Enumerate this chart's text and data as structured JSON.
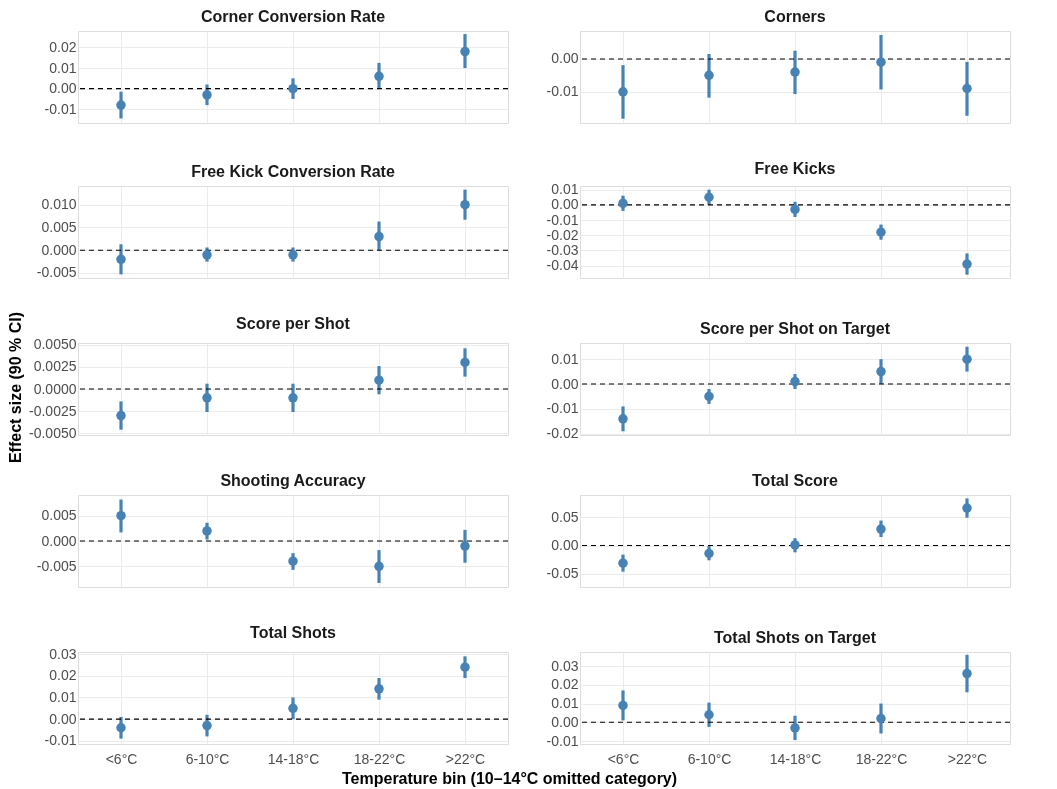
{
  "chart_data": [
    {
      "type": "scatter",
      "title": "Corner Conversion Rate",
      "categories": [
        null,
        null,
        null,
        null,
        null
      ],
      "series": [
        {
          "color": "#4682b4",
          "values": [
            -0.008,
            -0.003,
            0.0,
            0.006,
            0.018
          ],
          "errors": [
            [
              -0.0145,
              -0.0015
            ],
            [
              -0.008,
              0.002
            ],
            [
              -0.005,
              0.005
            ],
            [
              0.0,
              0.0125
            ],
            [
              0.01,
              0.0265
            ]
          ]
        }
      ],
      "ylim": [
        -0.0167,
        0.028
      ],
      "yticks": [
        {
          "value": -0.01,
          "label": "-0.01"
        },
        {
          "value": 0,
          "label": "0.00"
        },
        {
          "value": 0.01,
          "label": "0.01"
        },
        {
          "value": 0.02,
          "label": "0.02"
        }
      ],
      "ref_lines": [
        {
          "axis": "y",
          "value": 0,
          "color": "#000000",
          "line_style": "dashed"
        }
      ],
      "grid": true,
      "marker": "circle"
    },
    {
      "type": "scatter",
      "title": "Corners",
      "categories": [
        null,
        null,
        null,
        null,
        null
      ],
      "series": [
        {
          "color": "#4682b4",
          "values": [
            -0.01,
            -0.005,
            -0.004,
            -0.001,
            -0.009
          ],
          "errors": [
            [
              -0.0182,
              -0.0019
            ],
            [
              -0.0118,
              0.0015
            ],
            [
              -0.0107,
              0.0025
            ],
            [
              -0.0093,
              0.0073
            ],
            [
              -0.0173,
              -0.0009
            ]
          ]
        }
      ],
      "ylim": [
        -0.0195,
        0.0085
      ],
      "yticks": [
        {
          "value": -0.01,
          "label": "-0.01"
        },
        {
          "value": 0,
          "label": "0.00"
        }
      ],
      "ref_lines": [
        {
          "axis": "y",
          "value": 0,
          "color": "#000000",
          "line_style": "dashed"
        }
      ],
      "grid": true,
      "marker": "circle"
    },
    {
      "type": "scatter",
      "title": "Free Kick Conversion Rate",
      "categories": [
        null,
        null,
        null,
        null,
        null
      ],
      "series": [
        {
          "color": "#4682b4",
          "values": [
            -0.002,
            -0.001,
            -0.001,
            0.003,
            0.01
          ],
          "errors": [
            [
              -0.0053,
              0.0013
            ],
            [
              -0.0025,
              0.0006
            ],
            [
              -0.0025,
              0.0006
            ],
            [
              0.0,
              0.0063
            ],
            [
              0.0067,
              0.0133
            ]
          ]
        }
      ],
      "ylim": [
        -0.0061,
        0.0141
      ],
      "yticks": [
        {
          "value": -0.005,
          "label": "-0.005"
        },
        {
          "value": 0,
          "label": "0.000"
        },
        {
          "value": 0.005,
          "label": "0.005"
        },
        {
          "value": 0.01,
          "label": "0.010"
        }
      ],
      "ref_lines": [
        {
          "axis": "y",
          "value": 0,
          "color": "#000000",
          "line_style": "dashed"
        }
      ],
      "grid": true,
      "marker": "circle"
    },
    {
      "type": "scatter",
      "title": "Free Kicks",
      "categories": [
        null,
        null,
        null,
        null,
        null
      ],
      "series": [
        {
          "color": "#4682b4",
          "values": [
            0.001,
            0.005,
            -0.003,
            -0.018,
            -0.039
          ],
          "errors": [
            [
              -0.004,
              0.006
            ],
            [
              0.0,
              0.01
            ],
            [
              -0.008,
              0.002
            ],
            [
              -0.023,
              -0.013
            ],
            [
              -0.046,
              -0.032
            ]
          ]
        }
      ],
      "ylim": [
        -0.0482,
        0.0124
      ],
      "yticks": [
        {
          "value": -0.04,
          "label": "-0.04"
        },
        {
          "value": -0.03,
          "label": "-0.03"
        },
        {
          "value": -0.02,
          "label": "-0.02"
        },
        {
          "value": -0.01,
          "label": "-0.01"
        },
        {
          "value": 0,
          "label": "0.00"
        },
        {
          "value": 0.01,
          "label": "0.01"
        }
      ],
      "ref_lines": [
        {
          "axis": "y",
          "value": 0,
          "color": "#000000",
          "line_style": "dashed"
        }
      ],
      "grid": true,
      "marker": "circle"
    },
    {
      "type": "scatter",
      "title": "Score per Shot",
      "ylabel": "Effect size (90 % CI)",
      "categories": [
        null,
        null,
        null,
        null,
        null
      ],
      "series": [
        {
          "color": "#4682b4",
          "values": [
            -0.003,
            -0.001,
            -0.001,
            0.001,
            0.003
          ],
          "errors": [
            [
              -0.0046,
              -0.0014
            ],
            [
              -0.0026,
              0.0006
            ],
            [
              -0.0026,
              0.0006
            ],
            [
              -0.0006,
              0.0026
            ],
            [
              0.0014,
              0.0046
            ]
          ]
        }
      ],
      "ylim": [
        -0.0052,
        0.0052
      ],
      "yticks": [
        {
          "value": -0.005,
          "label": "-0.0050"
        },
        {
          "value": -0.0025,
          "label": "-0.0025"
        },
        {
          "value": 0,
          "label": "0.0000"
        },
        {
          "value": 0.0025,
          "label": "0.0025"
        },
        {
          "value": 0.005,
          "label": "0.0050"
        }
      ],
      "ref_lines": [
        {
          "axis": "y",
          "value": 0,
          "color": "#000000",
          "line_style": "dashed"
        }
      ],
      "grid": true,
      "marker": "circle"
    },
    {
      "type": "scatter",
      "title": "Score per Shot on Target",
      "categories": [
        null,
        null,
        null,
        null,
        null
      ],
      "series": [
        {
          "color": "#4682b4",
          "values": [
            -0.014,
            -0.005,
            0.001,
            0.005,
            0.01
          ],
          "errors": [
            [
              -0.019,
              -0.009
            ],
            [
              -0.008,
              -0.002
            ],
            [
              -0.002,
              0.004
            ],
            [
              0.0,
              0.01
            ],
            [
              0.005,
              0.015
            ]
          ]
        }
      ],
      "ylim": [
        -0.0205,
        0.0165
      ],
      "yticks": [
        {
          "value": -0.02,
          "label": "-0.02"
        },
        {
          "value": -0.01,
          "label": "-0.01"
        },
        {
          "value": 0,
          "label": "0.00"
        },
        {
          "value": 0.01,
          "label": "0.01"
        }
      ],
      "ref_lines": [
        {
          "axis": "y",
          "value": 0,
          "color": "#000000",
          "line_style": "dashed"
        }
      ],
      "grid": true,
      "marker": "circle"
    },
    {
      "type": "scatter",
      "title": "Shooting Accuracy",
      "categories": [
        null,
        null,
        null,
        null,
        null
      ],
      "series": [
        {
          "color": "#4682b4",
          "values": [
            0.005,
            0.002,
            -0.004,
            -0.005,
            -0.001
          ],
          "errors": [
            [
              0.0017,
              0.0082
            ],
            [
              0.0003,
              0.0036
            ],
            [
              -0.0057,
              -0.0024
            ],
            [
              -0.0083,
              -0.0018
            ],
            [
              -0.0043,
              0.0022
            ]
          ]
        }
      ],
      "ylim": [
        -0.0091,
        0.0091
      ],
      "yticks": [
        {
          "value": -0.005,
          "label": "-0.005"
        },
        {
          "value": 0,
          "label": "0.000"
        },
        {
          "value": 0.005,
          "label": "0.005"
        }
      ],
      "ref_lines": [
        {
          "axis": "y",
          "value": 0,
          "color": "#000000",
          "line_style": "dashed"
        }
      ],
      "grid": true,
      "marker": "circle"
    },
    {
      "type": "scatter",
      "title": "Total Score",
      "categories": [
        null,
        null,
        null,
        null,
        null
      ],
      "series": [
        {
          "color": "#4682b4",
          "values": [
            -0.031,
            -0.014,
            0.001,
            0.029,
            0.066
          ],
          "errors": [
            [
              -0.046,
              -0.016
            ],
            [
              -0.026,
              -0.001
            ],
            [
              -0.012,
              0.013
            ],
            [
              0.015,
              0.044
            ],
            [
              0.049,
              0.083
            ]
          ]
        }
      ],
      "ylim": [
        -0.073,
        0.089
      ],
      "yticks": [
        {
          "value": -0.05,
          "label": "-0.05"
        },
        {
          "value": 0,
          "label": "0.00"
        },
        {
          "value": 0.05,
          "label": "0.05"
        }
      ],
      "ref_lines": [
        {
          "axis": "y",
          "value": 0,
          "color": "#000000",
          "line_style": "dashed"
        }
      ],
      "grid": true,
      "marker": "circle"
    },
    {
      "type": "scatter",
      "title": "Total Shots",
      "xlabel": "Temperature bin (10–14°C omitted category)",
      "categories": [
        "<6°C",
        "6-10°C",
        "14-18°C",
        "18-22°C",
        ">22°C"
      ],
      "series": [
        {
          "color": "#4682b4",
          "values": [
            -0.004,
            -0.003,
            0.005,
            0.014,
            0.024
          ],
          "errors": [
            [
              -0.009,
              0.001
            ],
            [
              -0.008,
              0.002
            ],
            [
              0.0,
              0.01
            ],
            [
              0.009,
              0.019
            ],
            [
              0.019,
              0.029
            ]
          ]
        }
      ],
      "ylim": [
        -0.0115,
        0.031
      ],
      "yticks": [
        {
          "value": -0.01,
          "label": "-0.01"
        },
        {
          "value": 0,
          "label": "0.00"
        },
        {
          "value": 0.01,
          "label": "0.01"
        },
        {
          "value": 0.02,
          "label": "0.02"
        },
        {
          "value": 0.03,
          "label": "0.03"
        }
      ],
      "ref_lines": [
        {
          "axis": "y",
          "value": 0,
          "color": "#000000",
          "line_style": "dashed"
        }
      ],
      "grid": true,
      "marker": "circle"
    },
    {
      "type": "scatter",
      "title": "Total Shots on Target",
      "categories": [
        "<6°C",
        "6-10°C",
        "14-18°C",
        "18-22°C",
        ">22°C"
      ],
      "series": [
        {
          "color": "#4682b4",
          "values": [
            0.009,
            0.004,
            -0.003,
            0.002,
            0.026
          ],
          "errors": [
            [
              0.001,
              0.017
            ],
            [
              -0.0025,
              0.0105
            ],
            [
              -0.0095,
              0.0035
            ],
            [
              -0.006,
              0.01
            ],
            [
              0.016,
              0.036
            ]
          ]
        }
      ],
      "ylim": [
        -0.0116,
        0.0375
      ],
      "yticks": [
        {
          "value": -0.01,
          "label": "-0.01"
        },
        {
          "value": 0,
          "label": "0.00"
        },
        {
          "value": 0.01,
          "label": "0.01"
        },
        {
          "value": 0.02,
          "label": "0.02"
        },
        {
          "value": 0.03,
          "label": "0.03"
        }
      ],
      "ref_lines": [
        {
          "axis": "y",
          "value": 0,
          "color": "#000000",
          "line_style": "dashed"
        }
      ],
      "grid": true,
      "marker": "circle"
    }
  ]
}
